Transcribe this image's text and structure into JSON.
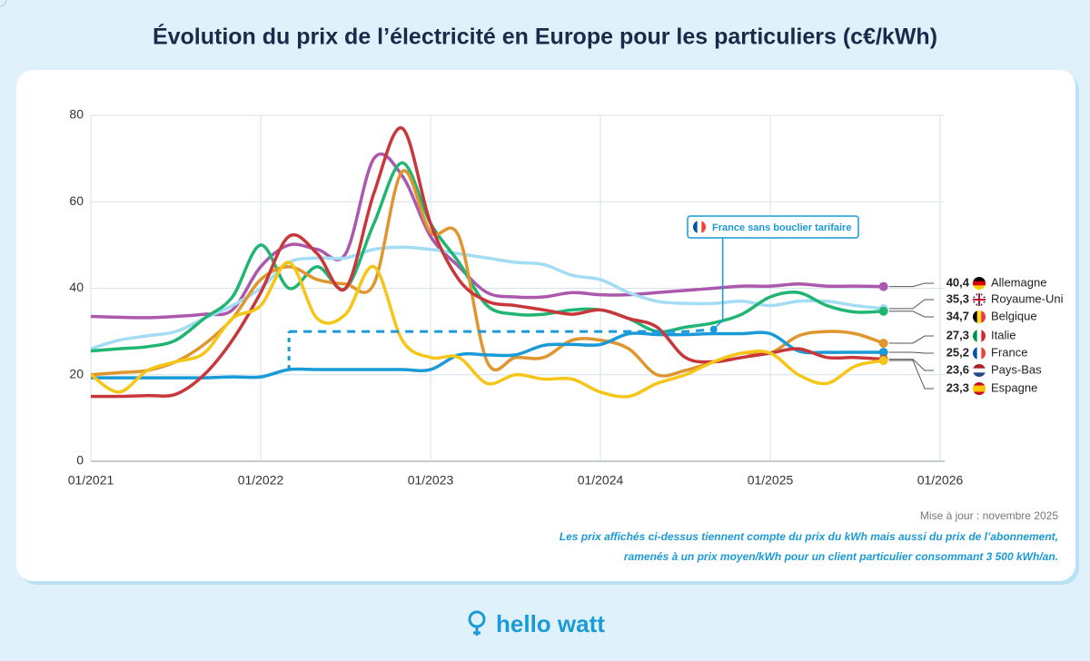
{
  "chart_data": {
    "type": "line",
    "title": "Évolution du prix de l’électricité en Europe pour les particuliers (c€/kWh)",
    "x": [
      "01/2021",
      "03/2021",
      "05/2021",
      "07/2021",
      "09/2021",
      "11/2021",
      "01/2022",
      "03/2022",
      "05/2022",
      "07/2022",
      "09/2022",
      "11/2022",
      "01/2023",
      "03/2023",
      "05/2023",
      "07/2023",
      "09/2023",
      "11/2023",
      "01/2024",
      "03/2024",
      "05/2024",
      "07/2024",
      "09/2024",
      "11/2024",
      "01/2025",
      "03/2025",
      "05/2025",
      "07/2025",
      "09/2025"
    ],
    "xlim": [
      "01/2021",
      "01/2026"
    ],
    "xticks": [
      "01/2021",
      "01/2022",
      "01/2023",
      "01/2024",
      "01/2025",
      "01/2026"
    ],
    "ylim": [
      0,
      80
    ],
    "yticks": [
      0,
      20,
      40,
      60,
      80
    ],
    "grid": true,
    "series": [
      {
        "name": "Allemagne",
        "color": "#ab58ad",
        "values": [
          33.5,
          33.3,
          33.2,
          33.5,
          34,
          35,
          45,
          50,
          49,
          48,
          70,
          66,
          52,
          45,
          39,
          38,
          38,
          39,
          38.5,
          38.5,
          39,
          39.5,
          40,
          40.5,
          40.5,
          41,
          40.5,
          40.5,
          40.4
        ],
        "value_labels": [
          null,
          null,
          null,
          null,
          null,
          null,
          null,
          null,
          null,
          null,
          null,
          null,
          null,
          null,
          null,
          null,
          null,
          null,
          null,
          null,
          null,
          null,
          null,
          null,
          null,
          null,
          null,
          null,
          "40,4"
        ]
      },
      {
        "name": "Royaume-Uni",
        "color": "#a3dcf5",
        "values": [
          26,
          28,
          29,
          30,
          33,
          36,
          40,
          46,
          47,
          47,
          49,
          49.5,
          49,
          48,
          47,
          46,
          45.5,
          43,
          42,
          39,
          37,
          36.5,
          36.5,
          37,
          36,
          37,
          37,
          36,
          35.3
        ],
        "value_labels": [
          null,
          null,
          null,
          null,
          null,
          null,
          null,
          null,
          null,
          null,
          null,
          null,
          null,
          null,
          null,
          null,
          null,
          null,
          null,
          null,
          null,
          null,
          null,
          null,
          null,
          null,
          null,
          null,
          "35,3"
        ]
      },
      {
        "name": "Belgique",
        "color": "#20b573",
        "values": [
          25.5,
          26,
          26.5,
          28,
          33,
          38,
          50,
          40,
          45,
          40,
          55,
          69,
          55,
          46,
          36,
          34,
          34,
          35,
          35,
          33,
          30,
          31,
          32,
          34,
          38,
          39,
          36,
          34.5,
          34.7
        ],
        "value_labels": [
          null,
          null,
          null,
          null,
          null,
          null,
          null,
          null,
          null,
          null,
          null,
          null,
          null,
          null,
          null,
          null,
          null,
          null,
          null,
          null,
          null,
          null,
          null,
          null,
          null,
          null,
          null,
          null,
          "34,7"
        ]
      },
      {
        "name": "Italie",
        "color": "#e0962e",
        "values": [
          20,
          20.5,
          21,
          23,
          27,
          33,
          42,
          45,
          42,
          41,
          41,
          67,
          53,
          52,
          23,
          24,
          24,
          28,
          28,
          26,
          20,
          21,
          23,
          25,
          25,
          29,
          30,
          29.5,
          27.3
        ],
        "value_labels": [
          null,
          null,
          null,
          null,
          null,
          null,
          null,
          null,
          null,
          null,
          null,
          null,
          null,
          null,
          null,
          null,
          null,
          null,
          null,
          null,
          null,
          null,
          null,
          null,
          null,
          null,
          null,
          null,
          "27,3"
        ]
      },
      {
        "name": "France",
        "color": "#1a9ad6",
        "values": [
          19.3,
          19.3,
          19.3,
          19.3,
          19.3,
          19.5,
          19.5,
          21.2,
          21.2,
          21.2,
          21.2,
          21.2,
          21.2,
          24.6,
          24.6,
          24.6,
          26.8,
          27,
          27,
          29.5,
          29.3,
          29.3,
          29.5,
          29.5,
          29.5,
          25.5,
          25.2,
          25.2,
          25.2
        ],
        "value_labels": [
          null,
          null,
          null,
          null,
          null,
          null,
          null,
          null,
          null,
          null,
          null,
          null,
          null,
          null,
          null,
          null,
          null,
          null,
          null,
          null,
          null,
          null,
          null,
          null,
          null,
          null,
          null,
          null,
          "25,2"
        ]
      },
      {
        "name": "Pays-Bas",
        "color": "#c8373a",
        "values": [
          15,
          15,
          15.2,
          15.5,
          20,
          28,
          39,
          52,
          48,
          40,
          62,
          77,
          55,
          42,
          37,
          36,
          35,
          34,
          35,
          33,
          31,
          24,
          23,
          24,
          25,
          26,
          24,
          24,
          23.6
        ],
        "value_labels": [
          null,
          null,
          null,
          null,
          null,
          null,
          null,
          null,
          null,
          null,
          null,
          null,
          null,
          null,
          null,
          null,
          null,
          null,
          null,
          null,
          null,
          null,
          null,
          null,
          null,
          null,
          null,
          null,
          "23,6"
        ]
      },
      {
        "name": "Espagne",
        "color": "#f5c518",
        "values": [
          20,
          16,
          21,
          23,
          25,
          33,
          36,
          46,
          33,
          34,
          45,
          28,
          24,
          24,
          18,
          20,
          19,
          19,
          16,
          15,
          18,
          20,
          23,
          25,
          25,
          20,
          18,
          22,
          23.3
        ],
        "value_labels": [
          null,
          null,
          null,
          null,
          null,
          null,
          null,
          null,
          null,
          null,
          null,
          null,
          null,
          null,
          null,
          null,
          null,
          null,
          null,
          null,
          null,
          null,
          null,
          null,
          null,
          null,
          null,
          null,
          "23,3"
        ]
      },
      {
        "name": "France sans bouclier tarifaire",
        "color": "#1a9ad6",
        "dashed": true,
        "values": [
          null,
          null,
          null,
          null,
          null,
          null,
          null,
          30,
          30,
          30,
          30,
          30,
          30,
          30,
          30,
          30,
          30,
          30,
          30,
          30,
          30,
          30,
          30.5,
          null,
          null,
          null,
          null,
          null,
          null
        ]
      }
    ],
    "updated": "Mise à jour : novembre 2025",
    "notes": [
      "Les prix affichés ci-dessus tiennent compte du prix du kWh mais aussi du prix de l’abonnement,",
      "ramenés à un prix moyen/kWh pour un client particulier consommant 3 500 kWh/an."
    ]
  },
  "brand": "hello watt"
}
